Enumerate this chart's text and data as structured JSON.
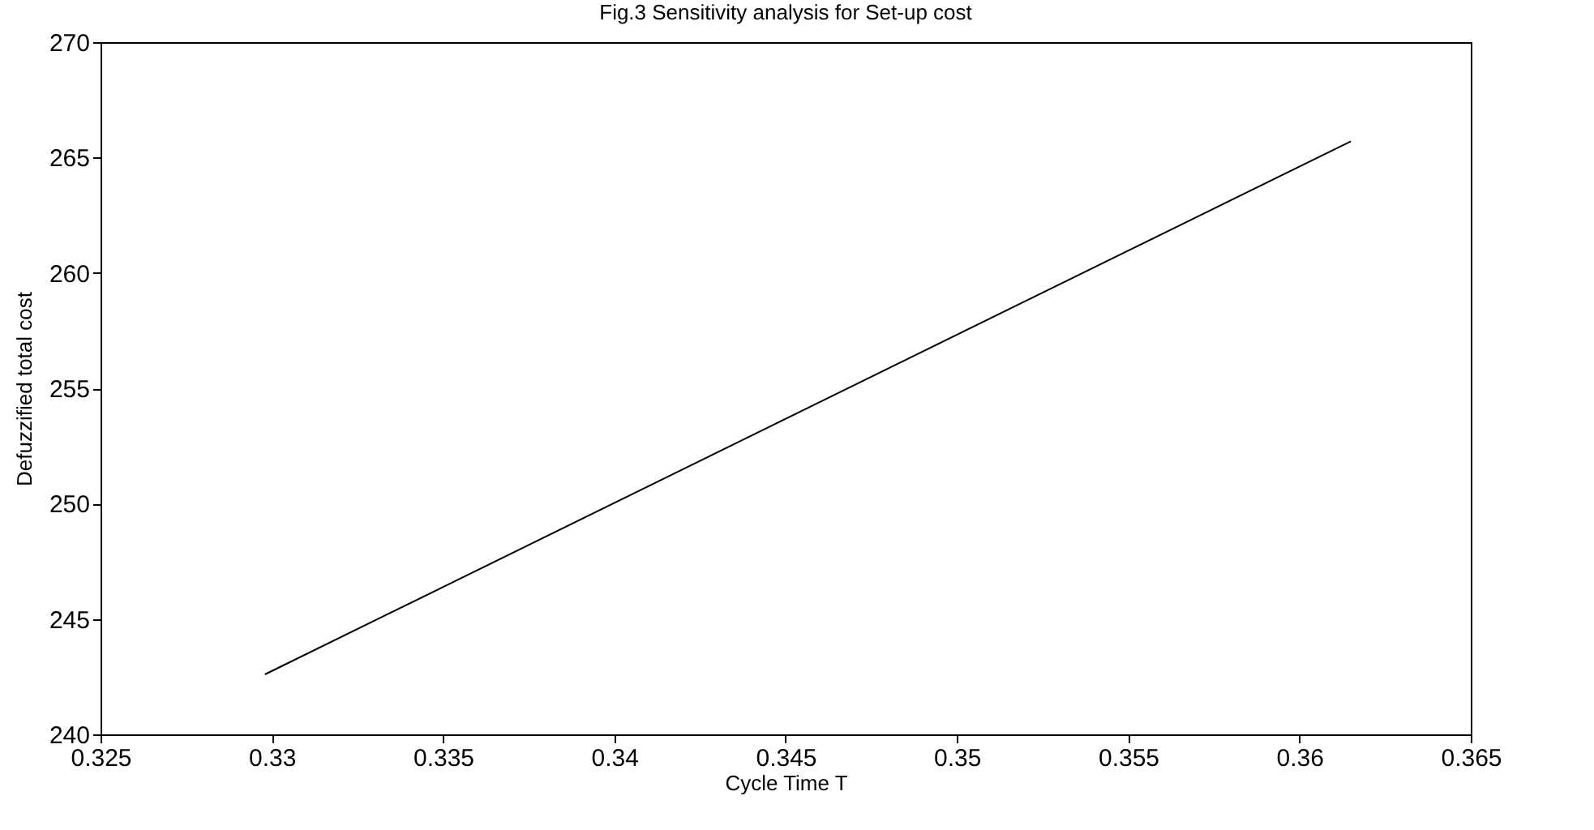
{
  "chart_data": {
    "type": "line",
    "title": "Fig.3 Sensitivity analysis for Set-up cost",
    "xlabel": "Cycle Time T",
    "ylabel": "Defuzzified total cost",
    "x": [
      0.3298,
      0.3615
    ],
    "series": [
      {
        "color": "#000000",
        "values": [
          242.6,
          265.7
        ]
      }
    ],
    "xlim": [
      0.325,
      0.365
    ],
    "xticks": [
      0.325,
      0.33,
      0.335,
      0.34,
      0.345,
      0.35,
      0.355,
      0.36,
      0.365
    ],
    "ylim": [
      240,
      270
    ],
    "yticks": [
      240,
      245,
      250,
      255,
      260,
      265,
      270
    ],
    "grid": false,
    "legend": false,
    "marker": "none",
    "line_style": "solid"
  }
}
